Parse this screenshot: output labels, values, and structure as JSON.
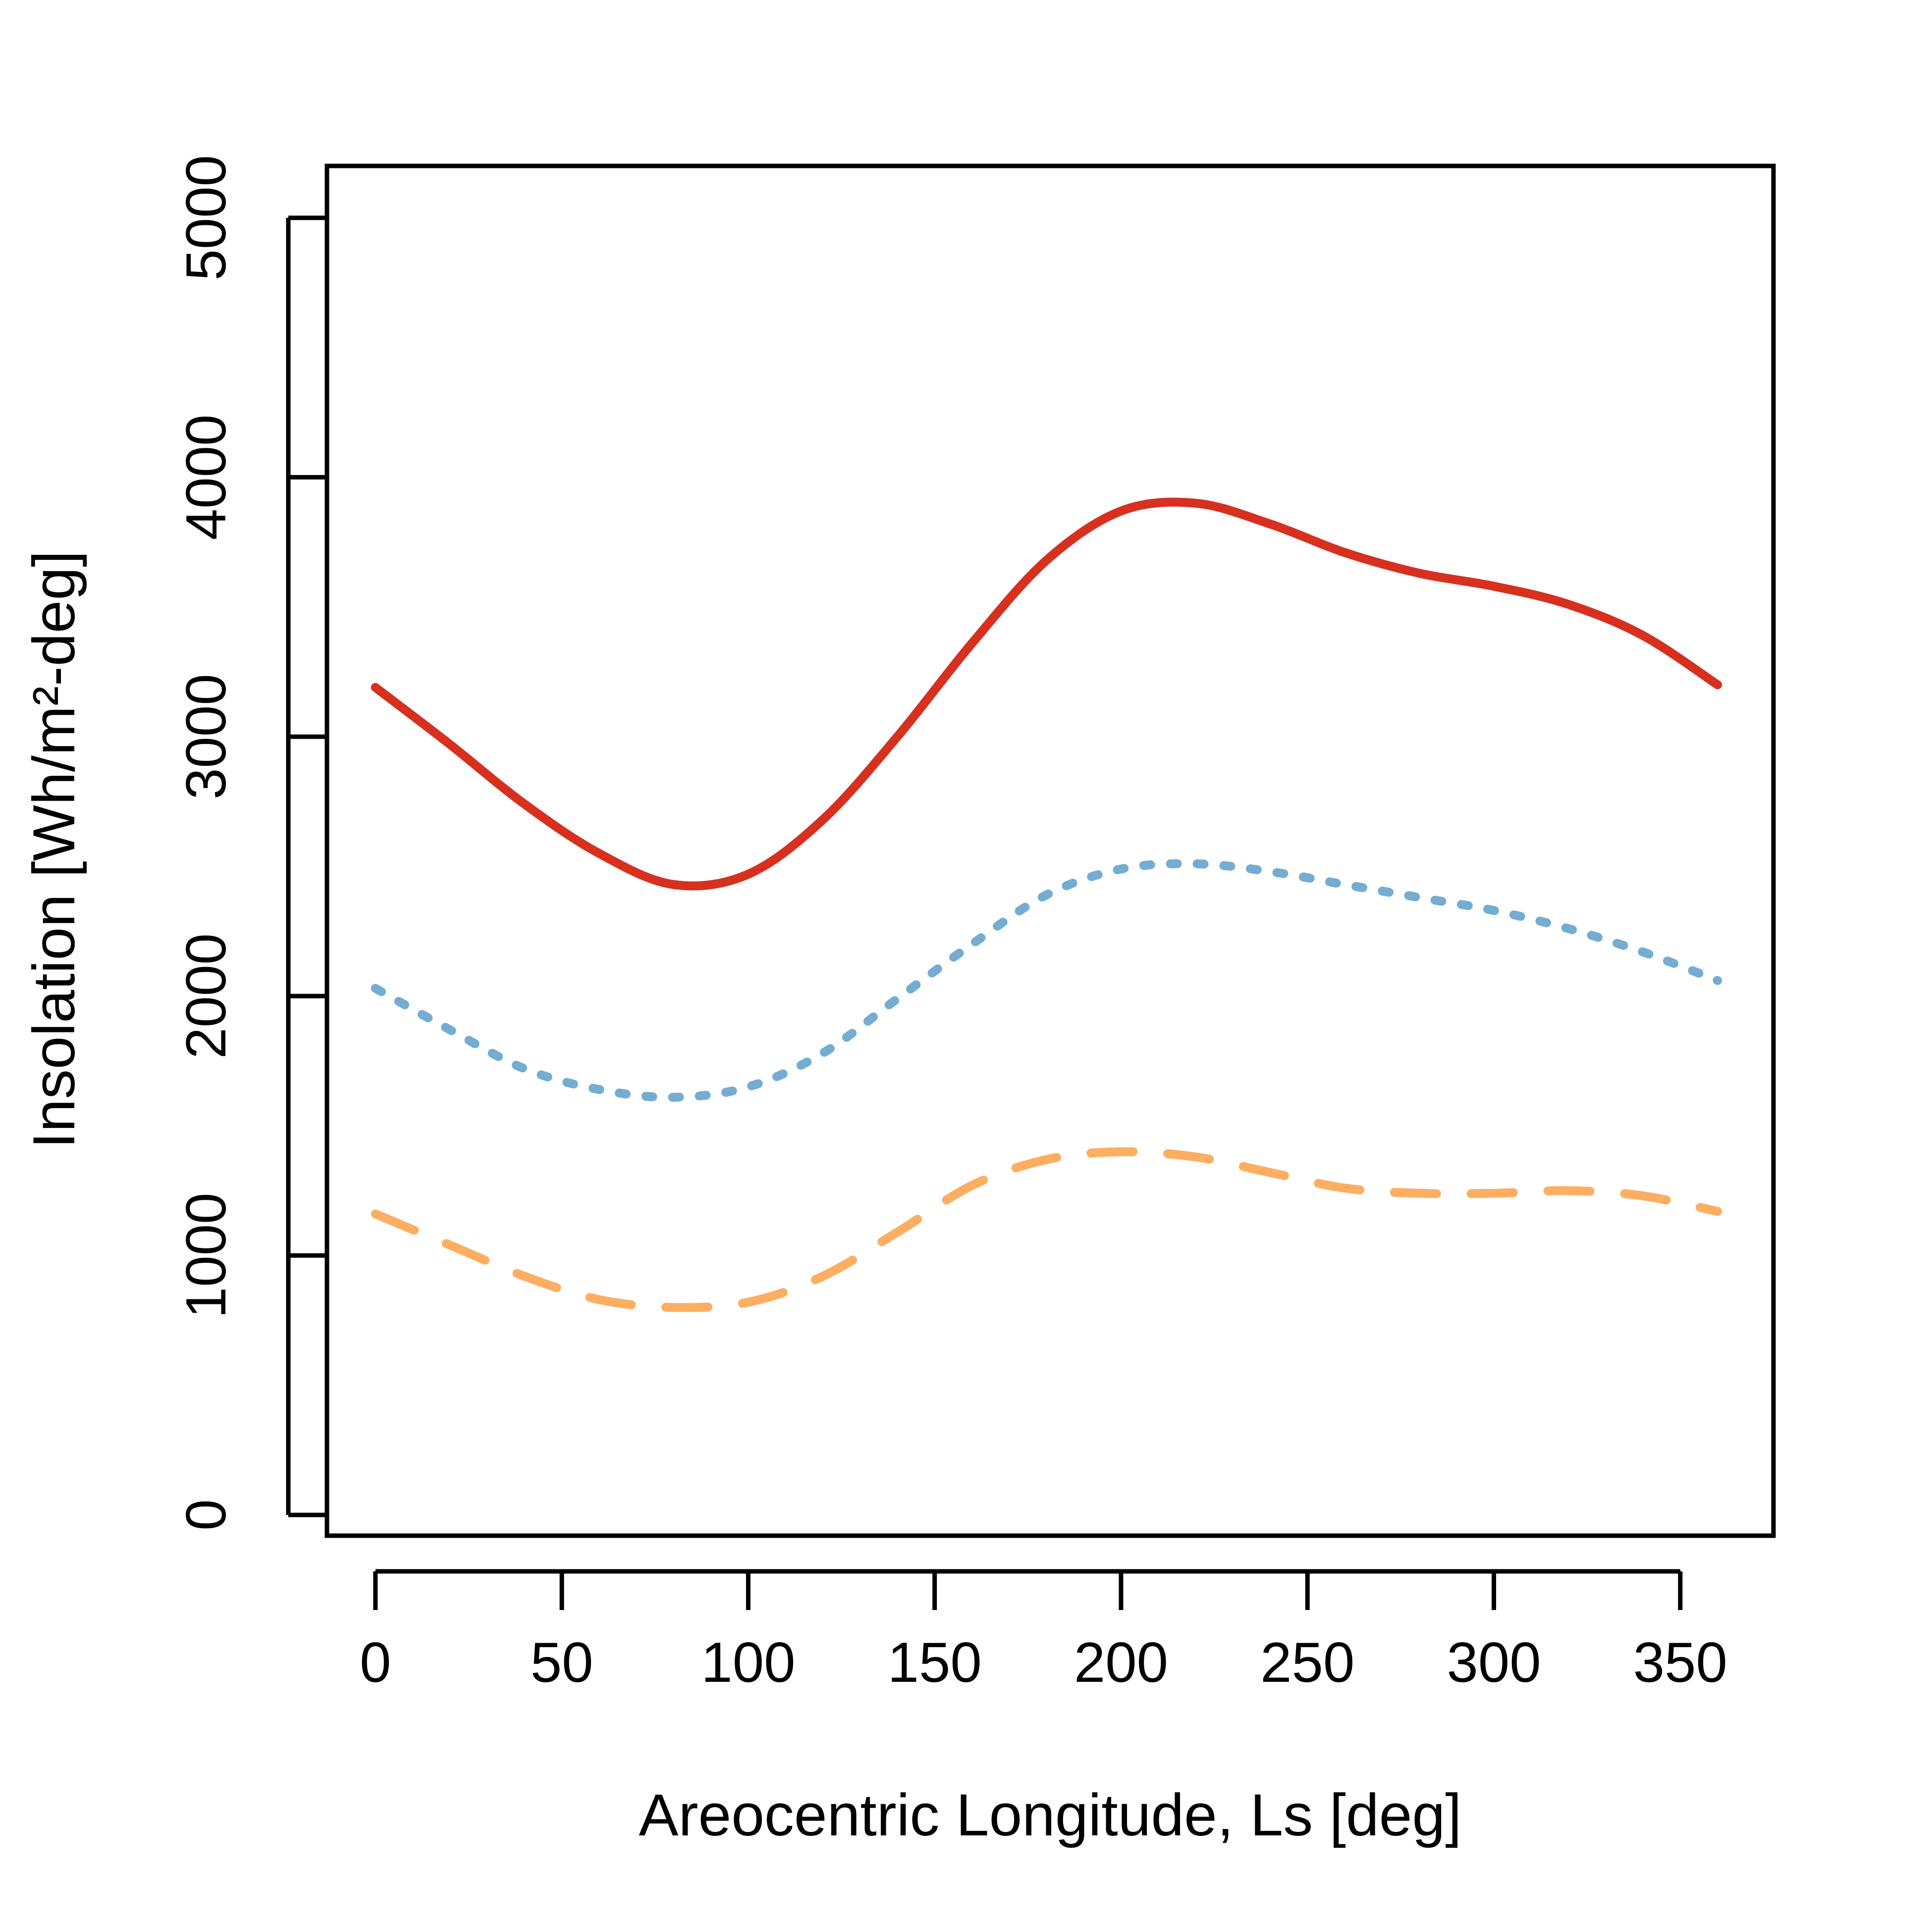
{
  "chart_data": {
    "type": "line",
    "title": "",
    "xlabel": "Areocentric Longitude, Ls [deg]",
    "ylabel": "Insolation [Wh/m²-deg]",
    "xlim": [
      -13,
      375
    ],
    "ylim": [
      -80,
      5200
    ],
    "xticks": [
      0,
      50,
      100,
      150,
      200,
      250,
      300,
      350
    ],
    "yticks": [
      0,
      1000,
      2000,
      3000,
      4000,
      5000
    ],
    "xtick_labels": [
      "0",
      "50",
      "100",
      "150",
      "200",
      "250",
      "300",
      "350"
    ],
    "ytick_labels": [
      "0",
      "1000",
      "2000",
      "3000",
      "4000",
      "5000"
    ],
    "grid": false,
    "legend": "none",
    "x": [
      0,
      20,
      40,
      60,
      80,
      100,
      120,
      140,
      160,
      180,
      200,
      220,
      240,
      260,
      280,
      300,
      320,
      340,
      360
    ],
    "series": [
      {
        "color": "#d7301f",
        "style": "solid",
        "values": [
          3190,
          2970,
          2740,
          2550,
          2430,
          2470,
          2680,
          3000,
          3360,
          3680,
          3870,
          3900,
          3820,
          3710,
          3630,
          3580,
          3510,
          3390,
          3200
        ]
      },
      {
        "color": "#74add1",
        "style": "dotted",
        "values": [
          2030,
          1870,
          1720,
          1640,
          1610,
          1650,
          1780,
          1990,
          2200,
          2390,
          2490,
          2510,
          2480,
          2430,
          2380,
          2330,
          2260,
          2170,
          2060
        ]
      },
      {
        "color": "#fdae61",
        "style": "dashed",
        "values": [
          1160,
          1040,
          920,
          830,
          800,
          820,
          920,
          1090,
          1270,
          1370,
          1400,
          1380,
          1320,
          1260,
          1240,
          1240,
          1250,
          1230,
          1170
        ]
      }
    ]
  }
}
